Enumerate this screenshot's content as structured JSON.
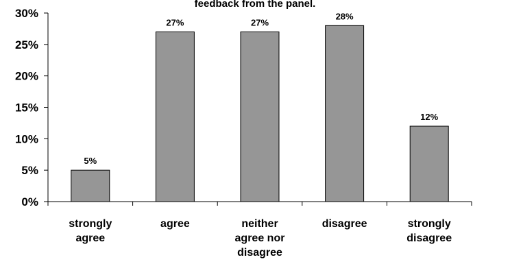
{
  "chart_data": {
    "type": "bar",
    "title": "feedback from the panel.",
    "categories": [
      [
        "strongly",
        "agree"
      ],
      [
        "agree"
      ],
      [
        "neither",
        "agree nor",
        "disagree"
      ],
      [
        "disagree"
      ],
      [
        "strongly",
        "disagree"
      ]
    ],
    "values": [
      5,
      27,
      27,
      28,
      12
    ],
    "data_labels": [
      "5%",
      "27%",
      "27%",
      "28%",
      "12%"
    ],
    "y_ticks": [
      "0%",
      "5%",
      "10%",
      "15%",
      "20%",
      "25%",
      "30%"
    ],
    "ylim": [
      0,
      30
    ],
    "xlabel": "",
    "ylabel": "",
    "grid": false,
    "bar_color": "#969696",
    "bar_edge_color": "#000000"
  }
}
